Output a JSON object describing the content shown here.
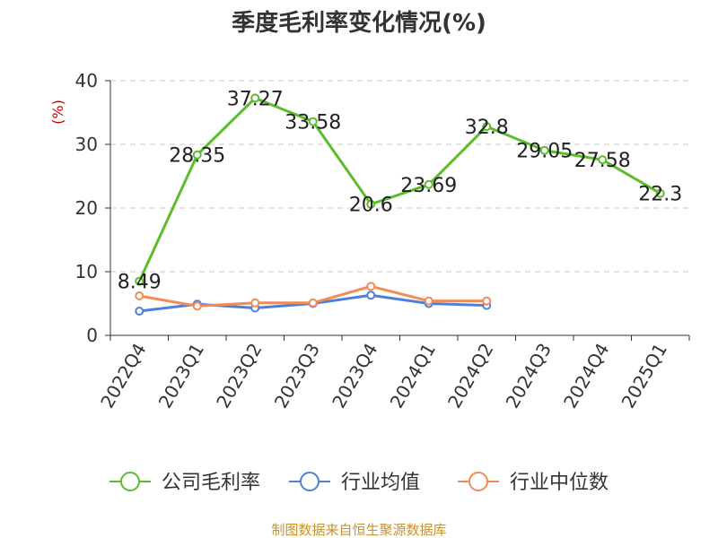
{
  "chart_data": {
    "type": "line",
    "title": "季度毛利率变化情况(%)",
    "ylabel": "(%)",
    "xlabel": "",
    "ylim": [
      0,
      40
    ],
    "yticks": [
      0,
      10,
      20,
      30,
      40
    ],
    "categories": [
      "2022Q4",
      "2023Q1",
      "2023Q2",
      "2023Q3",
      "2023Q4",
      "2024Q1",
      "2024Q2",
      "2024Q3",
      "2024Q4",
      "2025Q1"
    ],
    "grid": true,
    "legend_position": "bottom",
    "series": [
      {
        "name": "公司毛利率",
        "color": "#5cbd2a",
        "values": [
          8.49,
          28.35,
          37.27,
          33.58,
          20.6,
          23.69,
          32.8,
          29.05,
          27.58,
          22.3
        ],
        "labels": [
          "8.49",
          "28.35",
          "37.27",
          "33.58",
          "20.6",
          "23.69",
          "32.8",
          "29.05",
          "27.58",
          "22.3"
        ]
      },
      {
        "name": "行业均值",
        "color": "#4f7fd8",
        "values": [
          3.8,
          4.9,
          4.3,
          5.0,
          6.3,
          5.0,
          4.7,
          null,
          null,
          null
        ]
      },
      {
        "name": "行业中位数",
        "color": "#f28b55",
        "values": [
          6.2,
          4.6,
          5.1,
          5.1,
          7.7,
          5.4,
          5.4,
          null,
          null,
          null
        ]
      }
    ]
  },
  "source": "制图数据来自恒生聚源数据库"
}
